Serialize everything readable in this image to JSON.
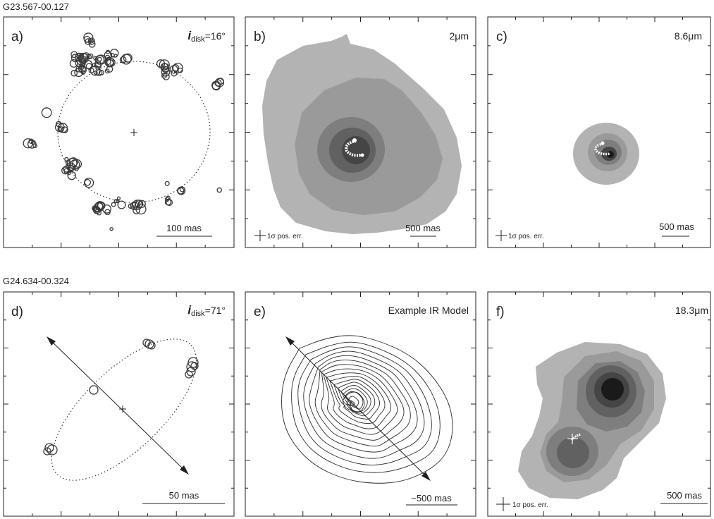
{
  "sources": [
    {
      "name": "G23.567-00.127",
      "panels": [
        {
          "letter": "a)",
          "label_prefix": "i",
          "label_sub": "disk",
          "label_value": "=16°",
          "scale_text": "100 mas"
        },
        {
          "letter": "b)",
          "label": "2μm",
          "scale_text": "500 mas",
          "err_text": "1σ pos. err."
        },
        {
          "letter": "c)",
          "label": "8.6μm",
          "scale_text": "500 mas",
          "err_text": "1σ pos. err."
        }
      ]
    },
    {
      "name": "G24.634-00.324",
      "panels": [
        {
          "letter": "d)",
          "label_prefix": "i",
          "label_sub": "disk",
          "label_value": "=71°",
          "scale_text": "50 mas"
        },
        {
          "letter": "e)",
          "label": "Example IR Model",
          "scale_text": "~500 mas"
        },
        {
          "letter": "f)",
          "label": "18.3μm",
          "scale_text": "500 mas",
          "err_text": "1σ pos. err."
        }
      ]
    }
  ],
  "colors": {
    "ink": "#231f20",
    "gray_levels": [
      "#b3b3b3",
      "#9a9a9a",
      "#7e7e7e",
      "#616161",
      "#454545",
      "#1a1a1a"
    ]
  }
}
